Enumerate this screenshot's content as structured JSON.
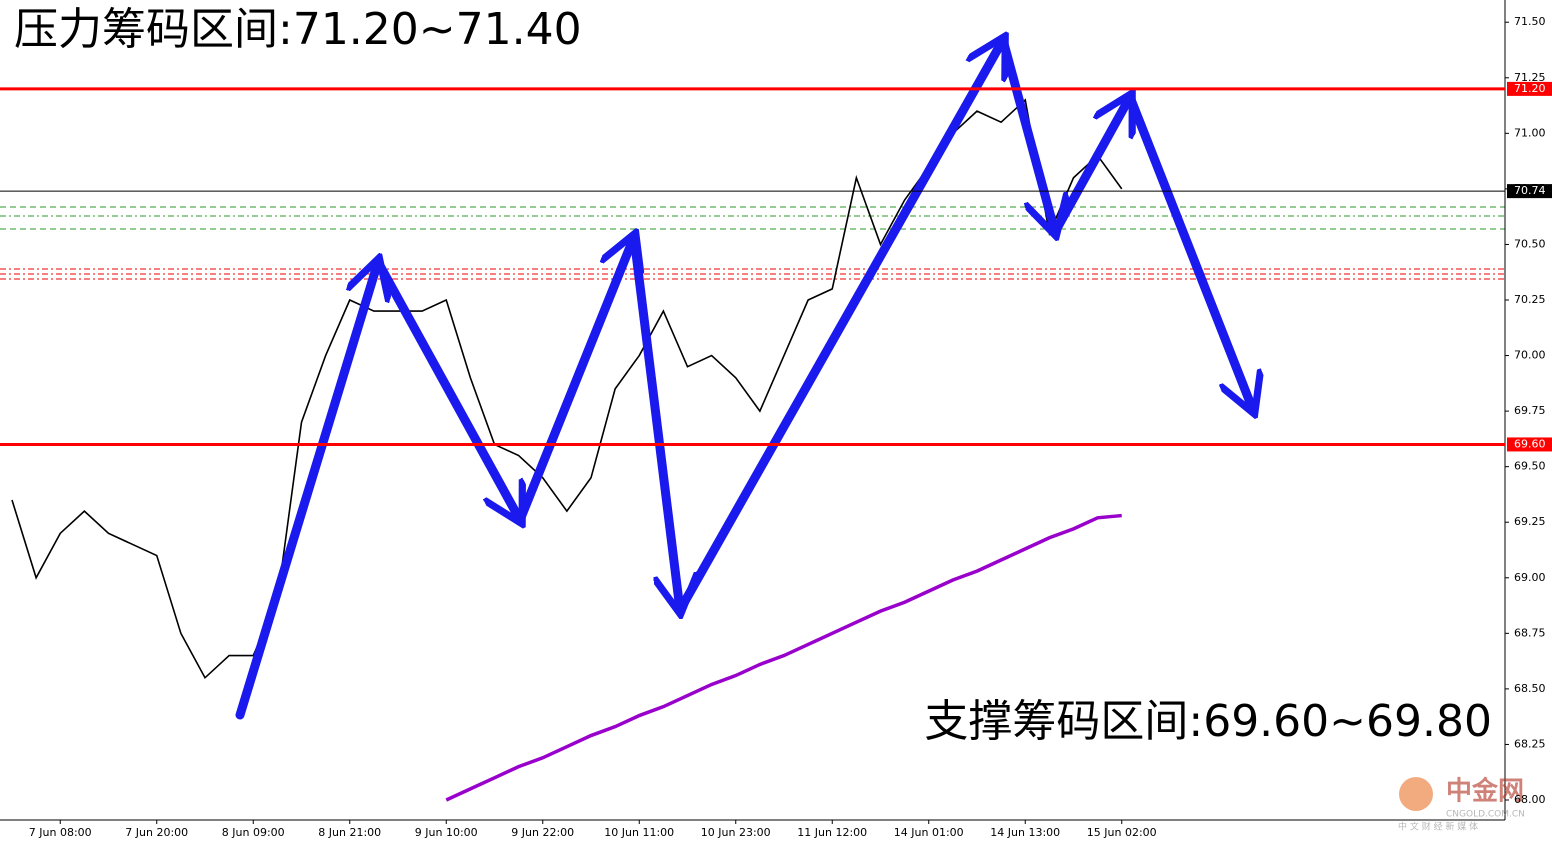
{
  "chart_data": {
    "type": "line",
    "title": "压力筹码区间:71.20~71.40",
    "annotation": "支撑筹码区间:69.60~69.80",
    "categories": [
      null,
      null,
      "7 Jun 08:00",
      null,
      null,
      null,
      "7 Jun 20:00",
      null,
      null,
      null,
      "8 Jun 09:00",
      null,
      null,
      null,
      "8 Jun 21:00",
      null,
      null,
      null,
      "9 Jun 10:00",
      null,
      null,
      null,
      "9 Jun 22:00",
      null,
      null,
      null,
      "10 Jun 11:00",
      null,
      null,
      null,
      "10 Jun 23:00",
      null,
      null,
      null,
      "11 Jun 12:00",
      null,
      null,
      null,
      "14 Jun 01:00",
      null,
      null,
      null,
      "14 Jun 13:00",
      null,
      null,
      null,
      "15 Jun 02:00"
    ],
    "series": [
      {
        "color": "#000000",
        "values": [
          69.35,
          69.0,
          69.2,
          69.3,
          69.2,
          69.15,
          69.1,
          68.75,
          68.55,
          68.65,
          68.65,
          68.9,
          69.7,
          70.0,
          70.25,
          70.2,
          70.2,
          70.2,
          70.25,
          69.9,
          69.6,
          69.55,
          69.45,
          69.3,
          69.45,
          69.85,
          70.0,
          70.2,
          69.95,
          70.0,
          69.9,
          69.75,
          70.0,
          70.25,
          70.3,
          70.8,
          70.5,
          70.7,
          70.85,
          71.0,
          71.1,
          71.05,
          71.15,
          70.55,
          70.8,
          70.9,
          70.75
        ]
      },
      {
        "color": "#9900cc",
        "values": [
          null,
          null,
          null,
          null,
          null,
          null,
          null,
          null,
          null,
          null,
          null,
          null,
          null,
          null,
          null,
          null,
          null,
          null,
          68.0,
          68.05,
          68.1,
          68.15,
          68.19,
          68.24,
          68.29,
          68.33,
          68.38,
          68.42,
          68.47,
          68.52,
          68.56,
          68.61,
          68.65,
          68.7,
          68.75,
          68.8,
          68.85,
          68.89,
          68.94,
          68.99,
          69.03,
          69.08,
          69.13,
          69.18,
          69.22,
          69.27,
          69.28
        ]
      }
    ],
    "levels": [
      {
        "value": 71.2,
        "label": "71.20",
        "color": "#ff0000"
      },
      {
        "value": 70.74,
        "label": "70.74",
        "color": "#000000"
      },
      {
        "value": 69.6,
        "label": "69.60",
        "color": "#ff0000"
      }
    ],
    "ylim": [
      67.91,
      71.6
    ],
    "yticks": [
      {
        "value": 68,
        "label": "68.00"
      },
      {
        "value": 68.25,
        "label": "68.25"
      },
      {
        "value": 68.5,
        "label": "68.50"
      },
      {
        "value": 68.75,
        "label": "68.75"
      },
      {
        "value": 69,
        "label": "69.00"
      },
      {
        "value": 69.25,
        "label": "69.25"
      },
      {
        "value": 69.5,
        "label": "69.50"
      },
      {
        "value": 69.75,
        "label": "69.75"
      },
      {
        "value": 70,
        "label": "70.00"
      },
      {
        "value": 70.25,
        "label": "70.25"
      },
      {
        "value": 70.5,
        "label": "70.50"
      },
      {
        "value": 70.75,
        "label": "70.75"
      },
      {
        "value": 71,
        "label": "71.00"
      },
      {
        "value": 71.25,
        "label": "71.25"
      },
      {
        "value": 71.5,
        "label": "71.50"
      }
    ],
    "watermark": {
      "name": "中金网",
      "url": "CNGOLD.COM.CN",
      "slogan": "中 文 财 经 新 媒 体"
    }
  }
}
